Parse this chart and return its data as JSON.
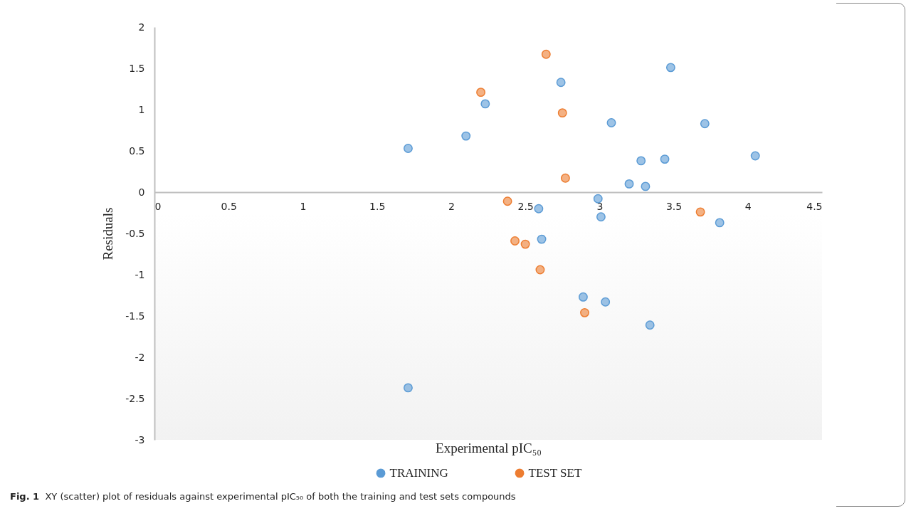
{
  "chart_data": {
    "type": "scatter",
    "xlabel": "Experimental  pIC₅₀",
    "ylabel": "Residuals",
    "annotations": [
      "Fig. 1  XY (scatter) plot of residuals against experimental pIC₅₀ of both the training and test sets compounds"
    ],
    "xlim": [
      0,
      4.5
    ],
    "xticks": [
      0,
      0.5,
      1,
      1.5,
      2,
      2.5,
      3,
      3.5,
      4,
      4.5
    ],
    "ylim": [
      -3,
      2
    ],
    "yticks": [
      -3,
      -2.5,
      -2,
      -1.5,
      -1,
      -0.5,
      0,
      0.5,
      1,
      1.5,
      2
    ],
    "grid": false,
    "legend": "bottom",
    "marker": "circle",
    "series": [
      {
        "name": "TRAINING",
        "color": "#5b9bd5",
        "x": [
          1.71,
          2.1,
          2.23,
          2.74,
          3.48,
          3.08,
          3.71,
          4.05,
          3.28,
          3.44,
          3.2,
          3.31,
          2.99,
          3.01,
          3.81,
          2.59,
          2.61,
          2.89,
          3.04,
          3.34,
          1.71
        ],
        "values": [
          0.53,
          0.68,
          1.07,
          1.33,
          1.51,
          0.84,
          0.83,
          0.44,
          0.38,
          0.4,
          0.1,
          0.07,
          -0.08,
          -0.3,
          -0.37,
          -0.2,
          -0.57,
          -1.27,
          -1.33,
          -1.61,
          -2.37
        ]
      },
      {
        "name": "TEST SET",
        "color": "#ed7d31",
        "x": [
          2.64,
          2.2,
          2.75,
          2.77,
          3.68,
          2.38,
          2.43,
          2.5,
          2.6,
          2.9
        ],
        "values": [
          1.67,
          1.21,
          0.96,
          0.17,
          -0.24,
          -0.11,
          -0.59,
          -0.63,
          -0.94,
          -1.46
        ]
      }
    ]
  }
}
